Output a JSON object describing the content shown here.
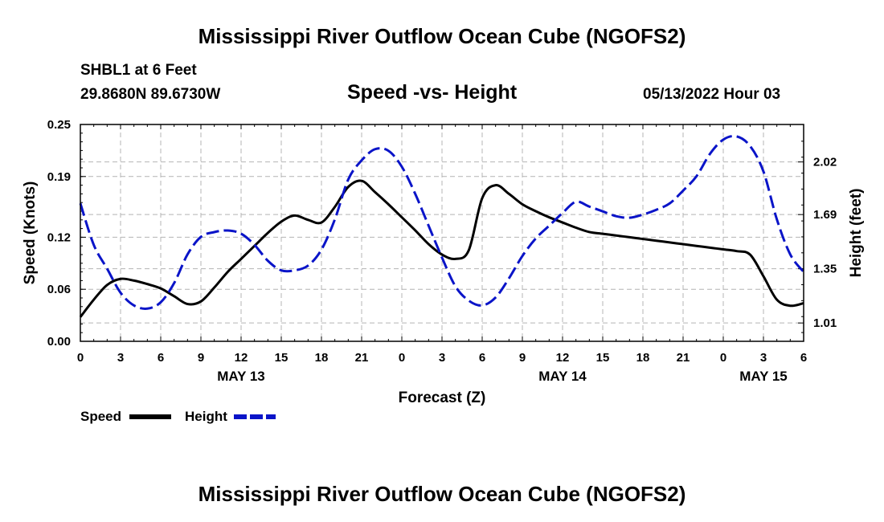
{
  "titles": {
    "main": "Mississippi River Outflow Ocean Cube (NGOFS2)",
    "station": "SHBL1 at 6 Feet",
    "coords": "29.8680N  89.6730W",
    "subtitle": "Speed -vs- Height",
    "datetime": "05/13/2022 Hour 03",
    "repeat": "Mississippi River Outflow Ocean Cube (NGOFS2)"
  },
  "legend": {
    "speed_label": "Speed",
    "height_label": "Height"
  },
  "colors": {
    "speed": "#000000",
    "height": "#0a14c8",
    "grid": "#b4b4b4"
  },
  "chart_data": {
    "type": "line",
    "title": "Speed -vs- Height",
    "xlabel": "Forecast (Z)",
    "ylabel_left": "Speed (Knots)",
    "ylabel_right": "Height (feet)",
    "x_unit": "hours since 05/13/2022 00Z",
    "xlim": [
      0,
      54
    ],
    "x_ticks": [
      0,
      3,
      6,
      9,
      12,
      15,
      18,
      21,
      24,
      27,
      30,
      33,
      36,
      39,
      42,
      45,
      48,
      51,
      54
    ],
    "x_tick_labels": [
      "0",
      "3",
      "6",
      "9",
      "12",
      "15",
      "18",
      "21",
      "0",
      "3",
      "6",
      "9",
      "12",
      "15",
      "18",
      "21",
      "0",
      "3",
      "6"
    ],
    "date_labels": [
      {
        "x": 12,
        "label": "MAY 13"
      },
      {
        "x": 36,
        "label": "MAY 14"
      },
      {
        "x": 51,
        "label": "MAY 15"
      }
    ],
    "ylim_left": [
      0.0,
      0.25
    ],
    "y_ticks_left": [
      0.0,
      0.06,
      0.12,
      0.19,
      0.25
    ],
    "y_tick_labels_left": [
      "0.00",
      "0.06",
      "0.12",
      "0.19",
      "0.25"
    ],
    "ylim_right": [
      0.895,
      2.255
    ],
    "y_ticks_right": [
      1.01,
      1.35,
      1.69,
      2.02
    ],
    "y_tick_labels_right": [
      "1.01",
      "1.35",
      "1.69",
      "2.02"
    ],
    "grid": true,
    "series": [
      {
        "name": "Speed",
        "axis": "left",
        "style": "solid",
        "x": [
          0,
          1,
          2,
          3,
          4,
          5,
          6,
          7,
          8,
          9,
          10,
          11,
          12,
          13,
          14,
          15,
          16,
          17,
          18,
          19,
          20,
          21,
          22,
          23,
          24,
          25,
          26,
          27,
          28,
          29,
          30,
          31,
          32,
          33,
          34,
          35,
          36,
          37,
          38,
          39,
          40,
          41,
          42,
          43,
          44,
          45,
          46,
          47,
          48,
          49,
          50,
          51,
          52,
          53,
          54
        ],
        "values": [
          0.028,
          0.048,
          0.065,
          0.072,
          0.07,
          0.066,
          0.061,
          0.052,
          0.043,
          0.046,
          0.062,
          0.08,
          0.095,
          0.11,
          0.125,
          0.138,
          0.145,
          0.14,
          0.137,
          0.155,
          0.178,
          0.185,
          0.172,
          0.158,
          0.143,
          0.128,
          0.112,
          0.1,
          0.095,
          0.105,
          0.165,
          0.18,
          0.17,
          0.158,
          0.15,
          0.143,
          0.137,
          0.131,
          0.126,
          0.124,
          0.122,
          0.12,
          0.118,
          0.116,
          0.114,
          0.112,
          0.11,
          0.108,
          0.106,
          0.104,
          0.1,
          0.075,
          0.048,
          0.041,
          0.044
        ]
      },
      {
        "name": "Height",
        "axis": "right",
        "style": "dashed",
        "x": [
          0,
          1,
          2,
          3,
          4,
          5,
          6,
          7,
          8,
          9,
          10,
          11,
          12,
          13,
          14,
          15,
          16,
          17,
          18,
          19,
          20,
          21,
          22,
          23,
          24,
          25,
          26,
          27,
          28,
          29,
          30,
          31,
          32,
          33,
          34,
          35,
          36,
          37,
          38,
          39,
          40,
          41,
          42,
          43,
          44,
          45,
          46,
          47,
          48,
          49,
          50,
          51,
          52,
          53,
          54
        ],
        "values": [
          1.76,
          1.5,
          1.35,
          1.2,
          1.12,
          1.1,
          1.14,
          1.26,
          1.44,
          1.55,
          1.58,
          1.59,
          1.57,
          1.5,
          1.4,
          1.34,
          1.34,
          1.37,
          1.47,
          1.66,
          1.91,
          2.03,
          2.1,
          2.09,
          1.99,
          1.82,
          1.62,
          1.42,
          1.24,
          1.15,
          1.12,
          1.17,
          1.29,
          1.43,
          1.54,
          1.62,
          1.7,
          1.77,
          1.74,
          1.71,
          1.68,
          1.67,
          1.69,
          1.72,
          1.76,
          1.84,
          1.93,
          2.07,
          2.16,
          2.18,
          2.12,
          1.96,
          1.66,
          1.44,
          1.33
        ]
      }
    ]
  }
}
